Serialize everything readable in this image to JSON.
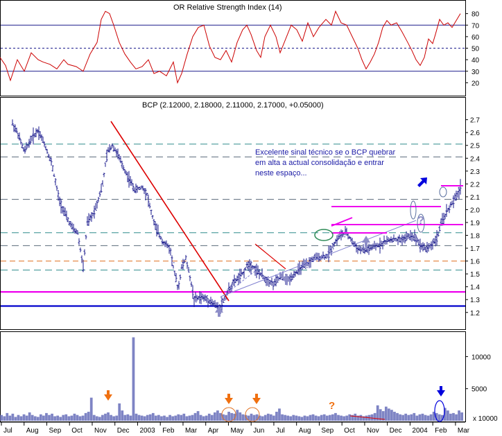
{
  "rsi_header": "OR Relative Strength Index (14)",
  "price_header": "BCP (2.12000, 2.18000, 2.11000, 2.17000, +0.05000)",
  "annotation_lines": [
    "Excelente sinal técnico se o BCP quebrar",
    "em alta a actual consolidação e entrar",
    "neste espaço..."
  ],
  "volume_scale_label": "x 10000",
  "colors": {
    "rsi_line": "#cc0000",
    "price_bars": "#1a1a8c",
    "volume_fill": "#7e84c4",
    "down_trendline": "#dd0000",
    "magenta": "#ee00ee",
    "support_blue": "#0000cc",
    "orange_dash": "#e07020",
    "teal_dash": "#2e8b8b",
    "arrow_up": "#8e8ec8",
    "arrow_orange": "#f07010",
    "arrow_blue": "#0000dd"
  },
  "chart_data": [
    {
      "type": "line",
      "name": "rsi",
      "ylim": [
        10,
        90
      ],
      "yticks": [
        20,
        30,
        40,
        50,
        60,
        70,
        80
      ],
      "reference_lines": [
        30,
        50,
        70
      ],
      "points": [
        [
          0,
          42
        ],
        [
          8,
          35
        ],
        [
          15,
          22
        ],
        [
          25,
          40
        ],
        [
          35,
          30
        ],
        [
          45,
          46
        ],
        [
          55,
          40
        ],
        [
          62,
          38
        ],
        [
          72,
          36
        ],
        [
          82,
          32
        ],
        [
          92,
          40
        ],
        [
          98,
          36
        ],
        [
          110,
          34
        ],
        [
          120,
          30
        ],
        [
          130,
          45
        ],
        [
          140,
          55
        ],
        [
          146,
          75
        ],
        [
          152,
          82
        ],
        [
          158,
          80
        ],
        [
          164,
          70
        ],
        [
          172,
          55
        ],
        [
          180,
          45
        ],
        [
          188,
          38
        ],
        [
          196,
          32
        ],
        [
          205,
          34
        ],
        [
          214,
          40
        ],
        [
          222,
          28
        ],
        [
          230,
          30
        ],
        [
          240,
          26
        ],
        [
          250,
          38
        ],
        [
          256,
          20
        ],
        [
          262,
          28
        ],
        [
          270,
          45
        ],
        [
          278,
          60
        ],
        [
          286,
          68
        ],
        [
          294,
          70
        ],
        [
          302,
          52
        ],
        [
          310,
          42
        ],
        [
          318,
          40
        ],
        [
          326,
          48
        ],
        [
          334,
          38
        ],
        [
          342,
          55
        ],
        [
          350,
          66
        ],
        [
          356,
          70
        ],
        [
          362,
          62
        ],
        [
          370,
          48
        ],
        [
          376,
          42
        ],
        [
          382,
          60
        ],
        [
          390,
          70
        ],
        [
          398,
          60
        ],
        [
          404,
          46
        ],
        [
          412,
          58
        ],
        [
          420,
          70
        ],
        [
          428,
          66
        ],
        [
          436,
          56
        ],
        [
          444,
          72
        ],
        [
          452,
          60
        ],
        [
          460,
          68
        ],
        [
          470,
          75
        ],
        [
          478,
          70
        ],
        [
          484,
          82
        ],
        [
          492,
          72
        ],
        [
          500,
          70
        ],
        [
          508,
          60
        ],
        [
          516,
          50
        ],
        [
          522,
          40
        ],
        [
          528,
          32
        ],
        [
          534,
          38
        ],
        [
          540,
          45
        ],
        [
          546,
          55
        ],
        [
          552,
          68
        ],
        [
          558,
          74
        ],
        [
          564,
          70
        ],
        [
          572,
          72
        ],
        [
          580,
          64
        ],
        [
          588,
          55
        ],
        [
          594,
          48
        ],
        [
          600,
          40
        ],
        [
          606,
          35
        ],
        [
          612,
          42
        ],
        [
          618,
          58
        ],
        [
          624,
          54
        ],
        [
          628,
          62
        ],
        [
          634,
          75
        ],
        [
          640,
          70
        ],
        [
          646,
          72
        ],
        [
          652,
          68
        ],
        [
          658,
          74
        ],
        [
          664,
          80
        ]
      ]
    },
    {
      "type": "ohlc",
      "name": "price",
      "ylim": [
        1.08,
        2.86
      ],
      "yticks": [
        1.2,
        1.3,
        1.4,
        1.5,
        1.6,
        1.7,
        1.8,
        1.9,
        2.0,
        2.1,
        2.2,
        2.3,
        2.4,
        2.5,
        2.6,
        2.7
      ],
      "x_month_labels": [
        "Jul",
        "Aug",
        "Sep",
        "Oct",
        "Nov",
        "Dec",
        "2003",
        "Feb",
        "Mar",
        "Apr",
        "May",
        "Jun",
        "Jul",
        "Aug",
        "Sep",
        "Oct",
        "Nov",
        "Dec",
        "2004",
        "Feb",
        "Mar"
      ],
      "path": [
        [
          0,
          2.82
        ],
        [
          15,
          2.7
        ],
        [
          25,
          2.6
        ],
        [
          35,
          2.45
        ],
        [
          45,
          2.55
        ],
        [
          55,
          2.62
        ],
        [
          65,
          2.5
        ],
        [
          75,
          2.35
        ],
        [
          85,
          2.08
        ],
        [
          95,
          1.95
        ],
        [
          105,
          1.85
        ],
        [
          112,
          1.82
        ],
        [
          120,
          1.55
        ],
        [
          126,
          1.9
        ],
        [
          133,
          1.95
        ],
        [
          140,
          2.05
        ],
        [
          148,
          2.2
        ],
        [
          155,
          2.45
        ],
        [
          162,
          2.5
        ],
        [
          168,
          2.45
        ],
        [
          176,
          2.35
        ],
        [
          185,
          2.25
        ],
        [
          195,
          2.15
        ],
        [
          205,
          2.18
        ],
        [
          212,
          2.12
        ],
        [
          218,
          1.98
        ],
        [
          225,
          1.85
        ],
        [
          235,
          1.75
        ],
        [
          245,
          1.7
        ],
        [
          252,
          1.5
        ],
        [
          257,
          1.38
        ],
        [
          262,
          1.55
        ],
        [
          268,
          1.62
        ],
        [
          275,
          1.45
        ],
        [
          280,
          1.3
        ],
        [
          290,
          1.32
        ],
        [
          300,
          1.3
        ],
        [
          310,
          1.26
        ],
        [
          317,
          1.23
        ],
        [
          323,
          1.3
        ],
        [
          330,
          1.38
        ],
        [
          340,
          1.45
        ],
        [
          350,
          1.5
        ],
        [
          358,
          1.58
        ],
        [
          366,
          1.55
        ],
        [
          375,
          1.5
        ],
        [
          385,
          1.45
        ],
        [
          395,
          1.42
        ],
        [
          405,
          1.48
        ],
        [
          415,
          1.45
        ],
        [
          425,
          1.5
        ],
        [
          435,
          1.55
        ],
        [
          445,
          1.58
        ],
        [
          452,
          1.62
        ],
        [
          462,
          1.63
        ],
        [
          472,
          1.64
        ],
        [
          480,
          1.72
        ],
        [
          490,
          1.8
        ],
        [
          500,
          1.82
        ],
        [
          508,
          1.75
        ],
        [
          515,
          1.7
        ],
        [
          525,
          1.68
        ],
        [
          535,
          1.7
        ],
        [
          545,
          1.72
        ],
        [
          555,
          1.75
        ],
        [
          565,
          1.77
        ],
        [
          575,
          1.76
        ],
        [
          585,
          1.78
        ],
        [
          592,
          1.8
        ],
        [
          600,
          1.78
        ],
        [
          607,
          1.72
        ],
        [
          614,
          1.7
        ],
        [
          622,
          1.72
        ],
        [
          630,
          1.78
        ],
        [
          637,
          1.9
        ],
        [
          644,
          1.98
        ],
        [
          652,
          2.05
        ],
        [
          658,
          2.1
        ],
        [
          664,
          2.17
        ]
      ],
      "reference_lines": [
        {
          "value": 2.51,
          "style": "teal-dash"
        },
        {
          "value": 2.41,
          "style": "grey-dash"
        },
        {
          "value": 2.08,
          "style": "grey-dash"
        },
        {
          "value": 1.82,
          "style": "teal-dash"
        },
        {
          "value": 1.72,
          "style": "grey-dash"
        },
        {
          "value": 1.6,
          "style": "orange-dash"
        },
        {
          "value": 1.53,
          "style": "teal-dash"
        },
        {
          "value": 1.36,
          "style": "magenta-solid"
        },
        {
          "value": 1.25,
          "style": "blue-solid"
        }
      ]
    },
    {
      "type": "bar",
      "name": "volume",
      "ylim": [
        0,
        13500
      ],
      "yticks": [
        5000,
        10000
      ],
      "values": [
        900,
        700,
        1200,
        800,
        1100,
        600,
        900,
        700,
        1000,
        800,
        1300,
        900,
        700,
        600,
        1000,
        800,
        1200,
        900,
        1100,
        700,
        800,
        600,
        900,
        1000,
        700,
        800,
        1100,
        900,
        700,
        800,
        1200,
        1400,
        3600,
        900,
        700,
        600,
        900,
        1100,
        1300,
        900,
        700,
        800,
        2700,
        1600,
        900,
        1000,
        800,
        13000,
        1100,
        900,
        800,
        700,
        900,
        1000,
        1200,
        800,
        900,
        700,
        800,
        600,
        900,
        700,
        800,
        1000,
        900,
        1100,
        700,
        800,
        900,
        1200,
        1500,
        900,
        700,
        800,
        1100,
        900,
        1300,
        1600,
        1200,
        1000,
        900,
        1400,
        1200,
        1100,
        1700,
        1300,
        1000,
        900,
        800,
        1100,
        900,
        1000,
        800,
        700,
        900,
        1100,
        1000,
        800,
        1400,
        1900,
        1000,
        900,
        800,
        700,
        900,
        800,
        700,
        600,
        800,
        700,
        900,
        1000,
        800,
        700,
        900,
        1000,
        800,
        900,
        1000,
        1200,
        900,
        800,
        700,
        800,
        1000,
        900,
        1100,
        800,
        900,
        700,
        800,
        900,
        1000,
        1200,
        2400,
        1800,
        1500,
        2200,
        1900,
        1700,
        1400,
        1200,
        1000,
        900,
        1100,
        900,
        1000,
        1200,
        800,
        1000,
        1100,
        900,
        800,
        1000,
        1400,
        1200,
        1000,
        900,
        2000,
        1600,
        1100,
        1200,
        1000,
        1600,
        1300
      ]
    }
  ]
}
